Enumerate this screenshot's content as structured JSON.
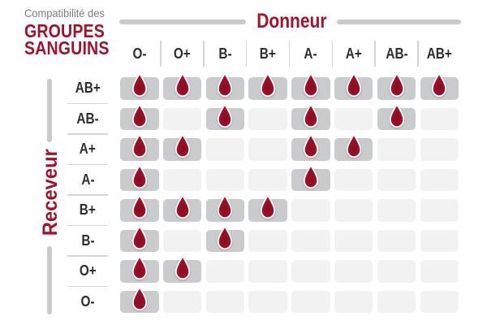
{
  "title": {
    "eyebrow": "Compatibilité des",
    "line1": "GROUPES",
    "line2": "SANGUINS"
  },
  "axes": {
    "donor": "Donneur",
    "receiver": "Receveur"
  },
  "icons": {
    "compatible": "blood-drop-icon"
  },
  "colors": {
    "crimson": "#A3122A",
    "drop_red": "#AD1130",
    "drop_dark": "#860C20",
    "cell_on": "#C9CBCC",
    "cell_off": "#F2F2F3",
    "rule_gray": "#C8CACB",
    "separator": "#D5D5D5",
    "label_dark": "#2D2D2D",
    "muted_gray": "#7E7E7E"
  },
  "chart_data": {
    "type": "heatmap",
    "title": "Compatibilité des GROUPES SANGUINS",
    "x_axis_label": "Donneur",
    "y_axis_label": "Receveur",
    "columns": [
      "O-",
      "O+",
      "B-",
      "B+",
      "A-",
      "A+",
      "AB-",
      "AB+"
    ],
    "rows": [
      "AB+",
      "AB-",
      "A+",
      "A-",
      "B+",
      "B-",
      "O+",
      "O-"
    ],
    "values": [
      [
        1,
        1,
        1,
        1,
        1,
        1,
        1,
        1
      ],
      [
        1,
        0,
        1,
        0,
        1,
        0,
        1,
        0
      ],
      [
        1,
        1,
        0,
        0,
        1,
        1,
        0,
        0
      ],
      [
        1,
        0,
        0,
        0,
        1,
        0,
        0,
        0
      ],
      [
        1,
        1,
        1,
        1,
        0,
        0,
        0,
        0
      ],
      [
        1,
        0,
        1,
        0,
        0,
        0,
        0,
        0
      ],
      [
        1,
        1,
        0,
        0,
        0,
        0,
        0,
        0
      ],
      [
        1,
        0,
        0,
        0,
        0,
        0,
        0,
        0
      ]
    ]
  }
}
